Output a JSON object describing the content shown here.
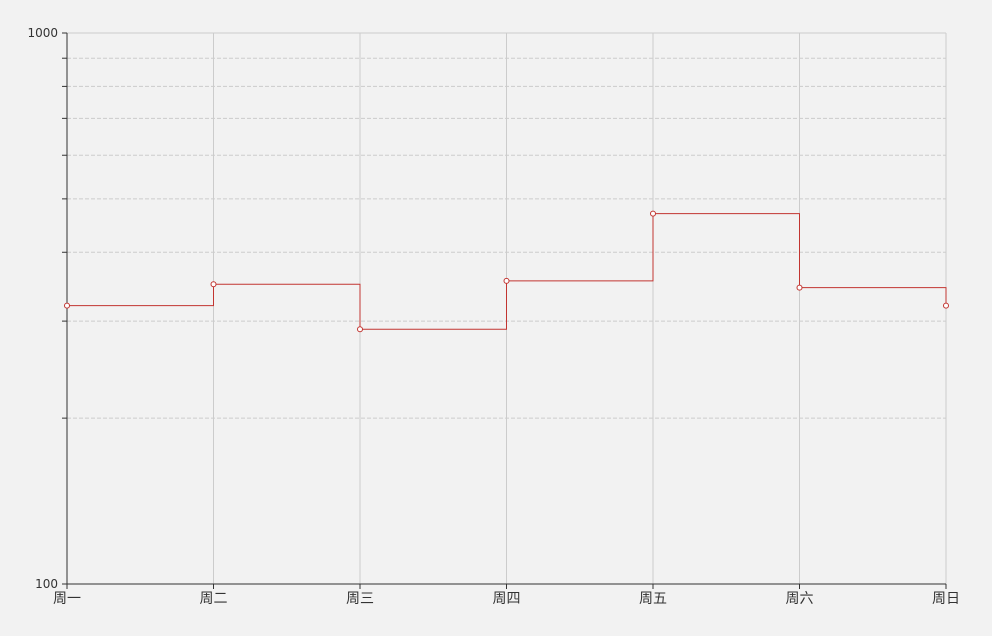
{
  "chart_data": {
    "type": "line",
    "line_style": "step-end",
    "categories": [
      "周一",
      "周二",
      "周三",
      "周四",
      "周五",
      "周六",
      "周日"
    ],
    "series": [
      {
        "values": [
          320,
          350,
          290,
          355,
          470,
          345,
          320
        ]
      }
    ],
    "y_scale": "log",
    "ylim": [
      100,
      1000
    ],
    "y_tick_labels": [
      "100",
      "1000"
    ],
    "grid": true,
    "title": "",
    "xlabel": "",
    "ylabel": "",
    "colors": {
      "series": "#c23531",
      "axis": "#333333",
      "grid": "#cccccc",
      "background": "#f2f2f2"
    }
  }
}
